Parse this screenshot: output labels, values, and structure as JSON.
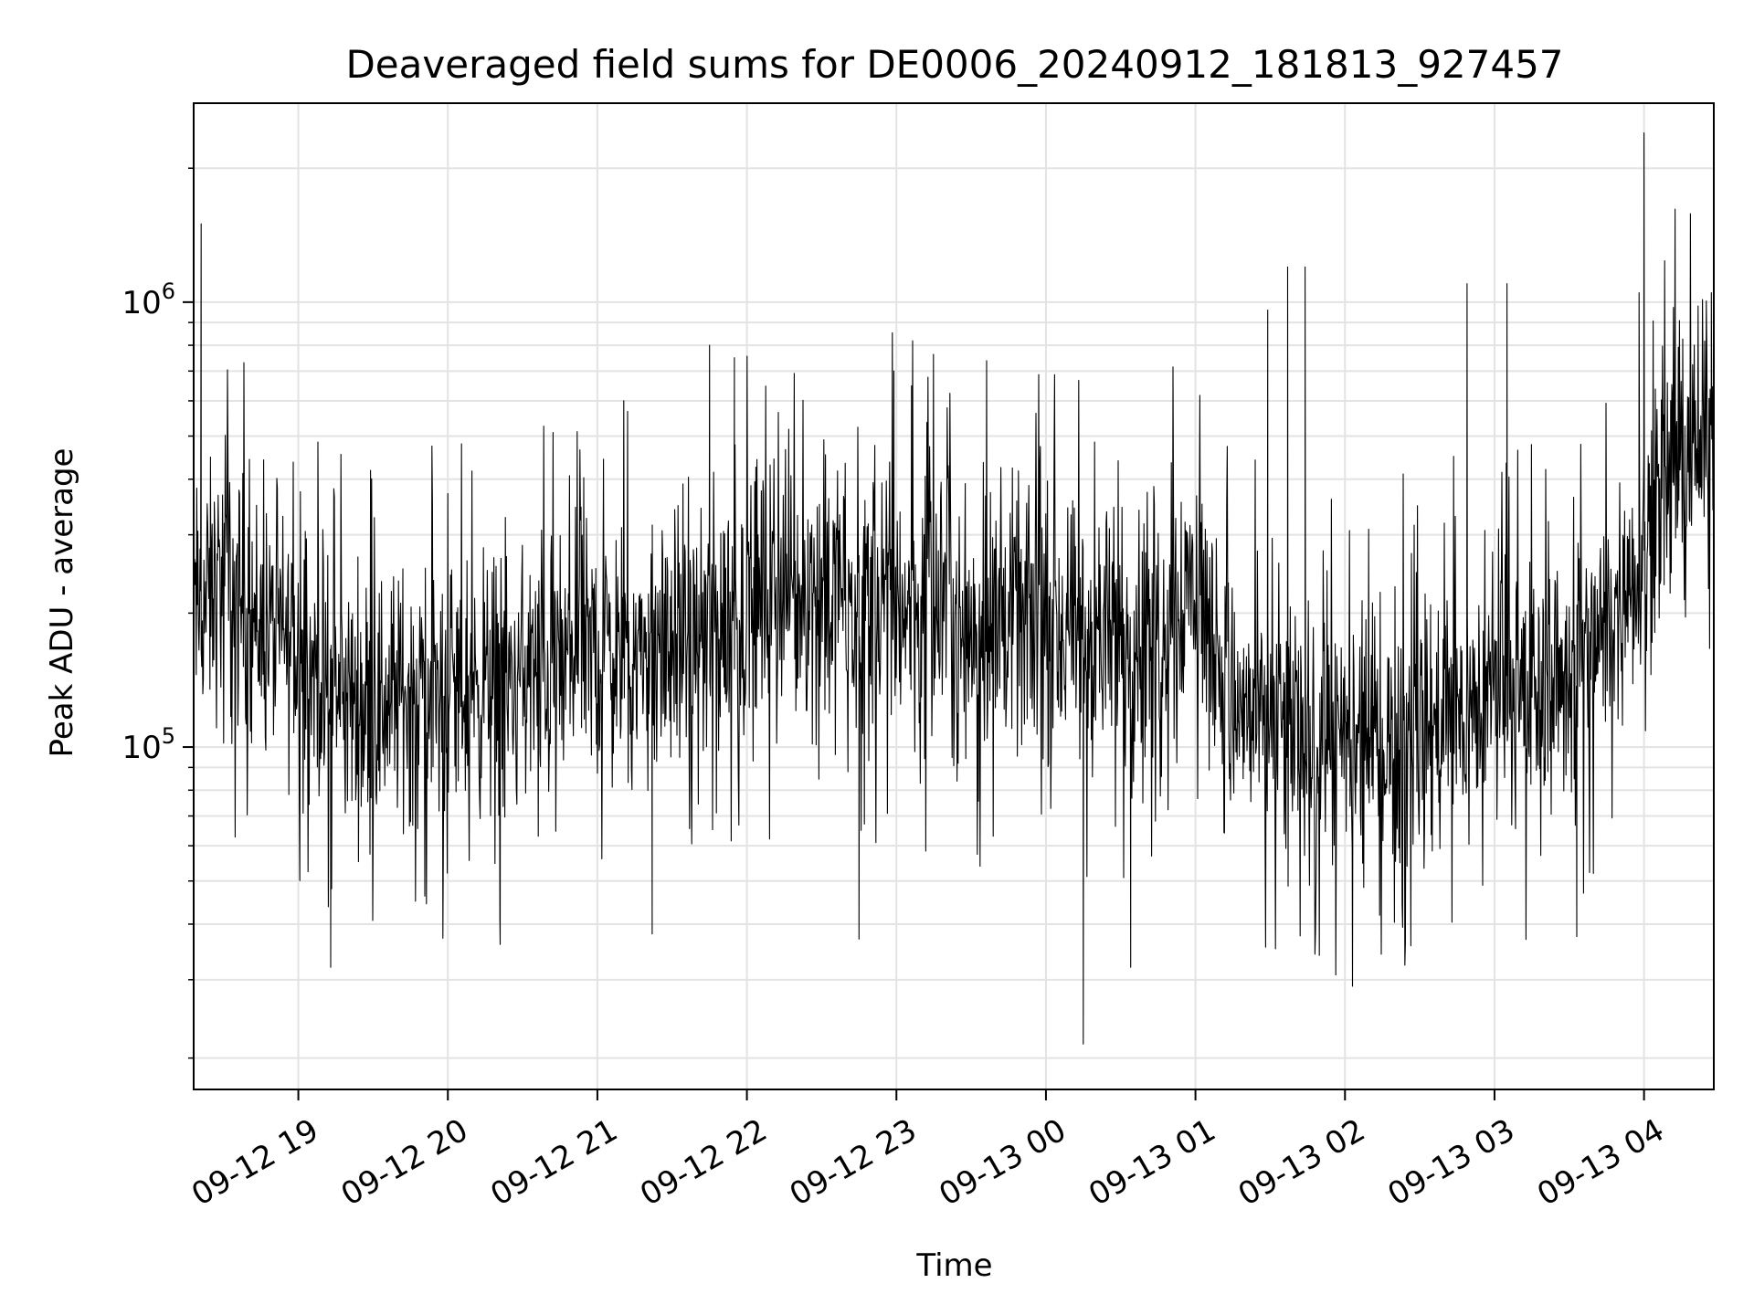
{
  "chart_data": {
    "type": "line",
    "title": "Deaveraged field sums for DE0006_20240912_181813_927457",
    "xlabel": "Time",
    "ylabel": "Peak ADU - average",
    "y_scale": "log",
    "ylim": [
      17000,
      2800000
    ],
    "xlim": [
      "2024-09-12 18:18",
      "2024-09-13 04:28"
    ],
    "grid": true,
    "legend": "none",
    "x_ticks": [
      "09-12 19",
      "09-12 20",
      "09-12 21",
      "09-12 22",
      "09-12 23",
      "09-13 00",
      "09-13 01",
      "09-13 02",
      "09-13 03",
      "09-13 04"
    ],
    "y_ticks": [
      {
        "base": "10",
        "exp": "5",
        "value": 100000
      },
      {
        "base": "10",
        "exp": "6",
        "value": 1000000
      }
    ],
    "line_color": "#000000",
    "series": [
      {
        "x": [
          "2024-09-12 18:20",
          "2024-09-12 18:30",
          "2024-09-12 18:45",
          "2024-09-12 19:00",
          "2024-09-12 19:15",
          "2024-09-12 19:30",
          "2024-09-12 19:45",
          "2024-09-12 20:00",
          "2024-09-12 20:15",
          "2024-09-12 20:30",
          "2024-09-12 20:45",
          "2024-09-12 21:00",
          "2024-09-12 21:15",
          "2024-09-12 21:30",
          "2024-09-12 21:45",
          "2024-09-12 22:00",
          "2024-09-12 22:15",
          "2024-09-12 22:30",
          "2024-09-12 22:45",
          "2024-09-12 23:00",
          "2024-09-12 23:15",
          "2024-09-12 23:30",
          "2024-09-12 23:45",
          "2024-09-13 00:00",
          "2024-09-13 00:15",
          "2024-09-13 00:30",
          "2024-09-13 00:45",
          "2024-09-13 01:00",
          "2024-09-13 01:15",
          "2024-09-13 01:30",
          "2024-09-13 01:45",
          "2024-09-13 02:00",
          "2024-09-13 02:15",
          "2024-09-13 02:30",
          "2024-09-13 02:45",
          "2024-09-13 03:00",
          "2024-09-13 03:15",
          "2024-09-13 03:30",
          "2024-09-13 03:45",
          "2024-09-13 04:00",
          "2024-09-13 04:15",
          "2024-09-13 04:28"
        ],
        "values": [
          200000,
          240000,
          185000,
          165000,
          130000,
          125000,
          135000,
          130000,
          140000,
          145000,
          150000,
          165000,
          160000,
          170000,
          180000,
          210000,
          220000,
          230000,
          210000,
          215000,
          200000,
          190000,
          195000,
          185000,
          170000,
          175000,
          195000,
          240000,
          120000,
          115000,
          105000,
          95000,
          100000,
          110000,
          115000,
          130000,
          130000,
          150000,
          180000,
          300000,
          450000,
          480000
        ]
      }
    ],
    "spikes_high": [
      {
        "x": "2024-09-12 18:21",
        "value": 1500000
      },
      {
        "x": "2024-09-12 21:45",
        "value": 800000
      },
      {
        "x": "2024-09-12 21:55",
        "value": 750000
      },
      {
        "x": "2024-09-12 22:59",
        "value": 700000
      },
      {
        "x": "2024-09-13 01:29",
        "value": 960000
      },
      {
        "x": "2024-09-13 01:37",
        "value": 1200000
      },
      {
        "x": "2024-09-13 01:44",
        "value": 1200000
      },
      {
        "x": "2024-09-13 02:49",
        "value": 1100000
      },
      {
        "x": "2024-09-13 03:05",
        "value": 1100000
      },
      {
        "x": "2024-09-13 03:58",
        "value": 1050000
      },
      {
        "x": "2024-09-13 04:00",
        "value": 2400000
      },
      {
        "x": "2024-09-13 04:27",
        "value": 1050000
      }
    ],
    "spikes_low": [
      {
        "x": "2024-09-12 19:13",
        "value": 32000
      },
      {
        "x": "2024-09-12 20:21",
        "value": 36000
      },
      {
        "x": "2024-09-12 21:22",
        "value": 38000
      },
      {
        "x": "2024-09-12 22:45",
        "value": 37000
      },
      {
        "x": "2024-09-13 00:15",
        "value": 21500
      },
      {
        "x": "2024-09-13 00:34",
        "value": 32000
      },
      {
        "x": "2024-09-13 02:03",
        "value": 29000
      },
      {
        "x": "2024-09-13 03:33",
        "value": 37500
      }
    ]
  }
}
